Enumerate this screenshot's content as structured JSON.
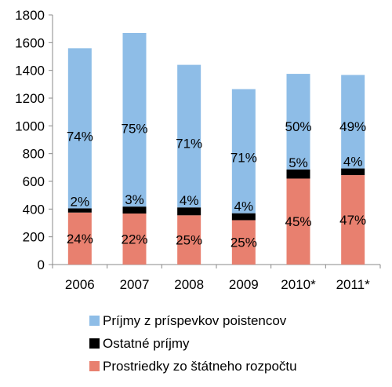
{
  "chart_data": {
    "type": "bar",
    "stacked": true,
    "categories": [
      "2006",
      "2007",
      "2008",
      "2009",
      "2010*",
      "2011*"
    ],
    "ylim": [
      0,
      1800
    ],
    "yticks": [
      0,
      200,
      400,
      600,
      800,
      1000,
      1200,
      1400,
      1600,
      1800
    ],
    "grid": false,
    "legend_position": "bottom",
    "series": [
      {
        "name": "Prostriedky zo štátneho rozpočtu",
        "color": "#e8806f",
        "values": [
          375,
          368,
          355,
          320,
          620,
          645
        ],
        "labels": [
          "24%",
          "22%",
          "25%",
          "25%",
          "45%",
          "47%"
        ]
      },
      {
        "name": "Ostatné príjmy",
        "color": "#000000",
        "values": [
          30,
          50,
          57,
          50,
          66,
          48
        ],
        "labels": [
          "2%",
          "3%",
          "4%",
          "4%",
          "5%",
          "4%"
        ]
      },
      {
        "name": "Príjmy z príspevkov poistencov",
        "color": "#8ebde7",
        "values": [
          1155,
          1252,
          1028,
          895,
          689,
          674
        ],
        "labels": [
          "74%",
          "75%",
          "71%",
          "71%",
          "50%",
          "49%"
        ]
      }
    ],
    "legend_order": [
      2,
      1,
      0
    ]
  }
}
